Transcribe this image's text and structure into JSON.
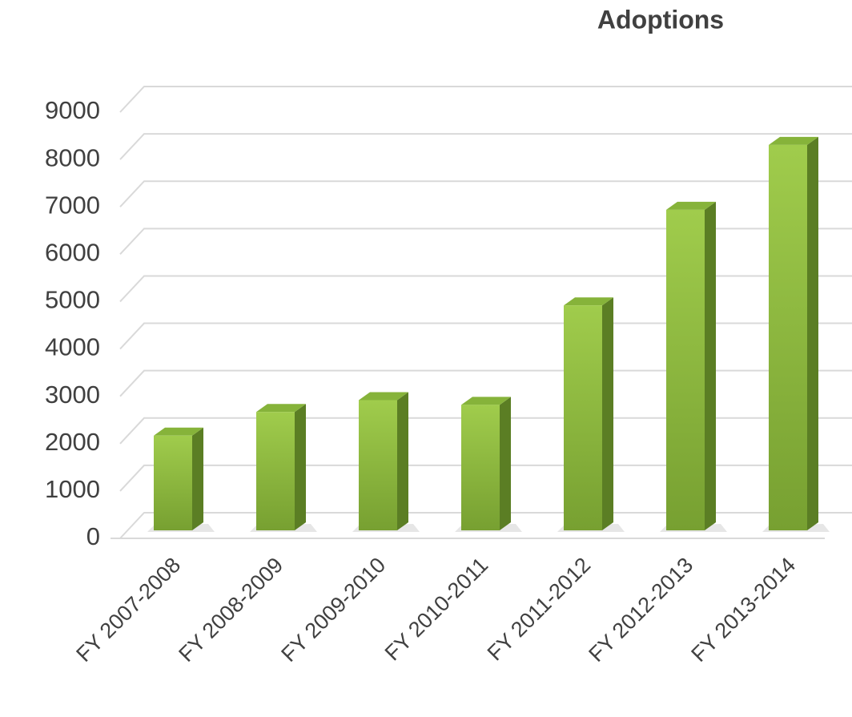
{
  "chart_data": {
    "type": "bar",
    "title": "Adoptions",
    "categories": [
      "FY 2007-2008",
      "FY 2008-2009",
      "FY 2009-2010",
      "FY 2010-2011",
      "FY 2011-2012",
      "FY 2012-2013",
      "FY 2013-2014"
    ],
    "values": [
      2000,
      2500,
      2750,
      2650,
      4750,
      6770,
      8140
    ],
    "color": "#8dbb3e",
    "ylim": [
      0,
      9000
    ],
    "yticks": [
      0,
      1000,
      2000,
      3000,
      4000,
      5000,
      6000,
      7000,
      8000,
      9000
    ],
    "grid": true
  }
}
